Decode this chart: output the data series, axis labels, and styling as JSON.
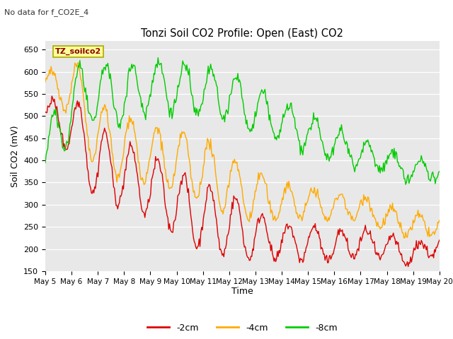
{
  "title": "Tonzi Soil CO2 Profile: Open (East) CO2",
  "subtitle": "No data for f_CO2E_4",
  "ylabel": "Soil CO2 (mV)",
  "xlabel": "Time",
  "legend_label": "TZ_soilco2",
  "ylim": [
    150,
    670
  ],
  "yticks": [
    150,
    200,
    250,
    300,
    350,
    400,
    450,
    500,
    550,
    600,
    650
  ],
  "xtick_labels": [
    "May 5",
    "May 6",
    "May 7",
    "May 8",
    "May 9",
    "May 10",
    "May 11",
    "May 12",
    "May 13",
    "May 14",
    "May 15",
    "May 16",
    "May 17",
    "May 18",
    "May 19",
    "May 20"
  ],
  "line_2cm_color": "#dd0000",
  "line_4cm_color": "#ffaa00",
  "line_8cm_color": "#00cc00",
  "bg_color": "#e8e8e8",
  "legend_entries": [
    "-2cm",
    "-4cm",
    "-8cm"
  ],
  "n_days": 15,
  "n_pts": 480,
  "base_2cm": [
    510,
    480,
    390,
    370,
    340,
    305,
    270,
    255,
    230,
    215,
    215,
    205,
    215,
    205,
    185,
    215
  ],
  "amp_2cm": [
    20,
    70,
    85,
    70,
    70,
    70,
    75,
    70,
    55,
    40,
    40,
    35,
    30,
    30,
    25,
    20
  ],
  "base_4cm": [
    570,
    570,
    450,
    430,
    410,
    400,
    380,
    345,
    320,
    305,
    305,
    295,
    295,
    270,
    250,
    255
  ],
  "amp_4cm": [
    20,
    70,
    80,
    75,
    65,
    70,
    70,
    65,
    55,
    40,
    35,
    30,
    30,
    25,
    25,
    20
  ],
  "base_8cm": [
    400,
    530,
    555,
    545,
    570,
    565,
    555,
    545,
    510,
    490,
    460,
    440,
    415,
    400,
    375,
    380
  ],
  "amp_8cm": [
    55,
    80,
    65,
    65,
    55,
    55,
    55,
    55,
    50,
    45,
    40,
    35,
    30,
    25,
    25,
    20
  ],
  "seed": 42,
  "noise_std": 6,
  "phase_noise_scale": 0.015
}
